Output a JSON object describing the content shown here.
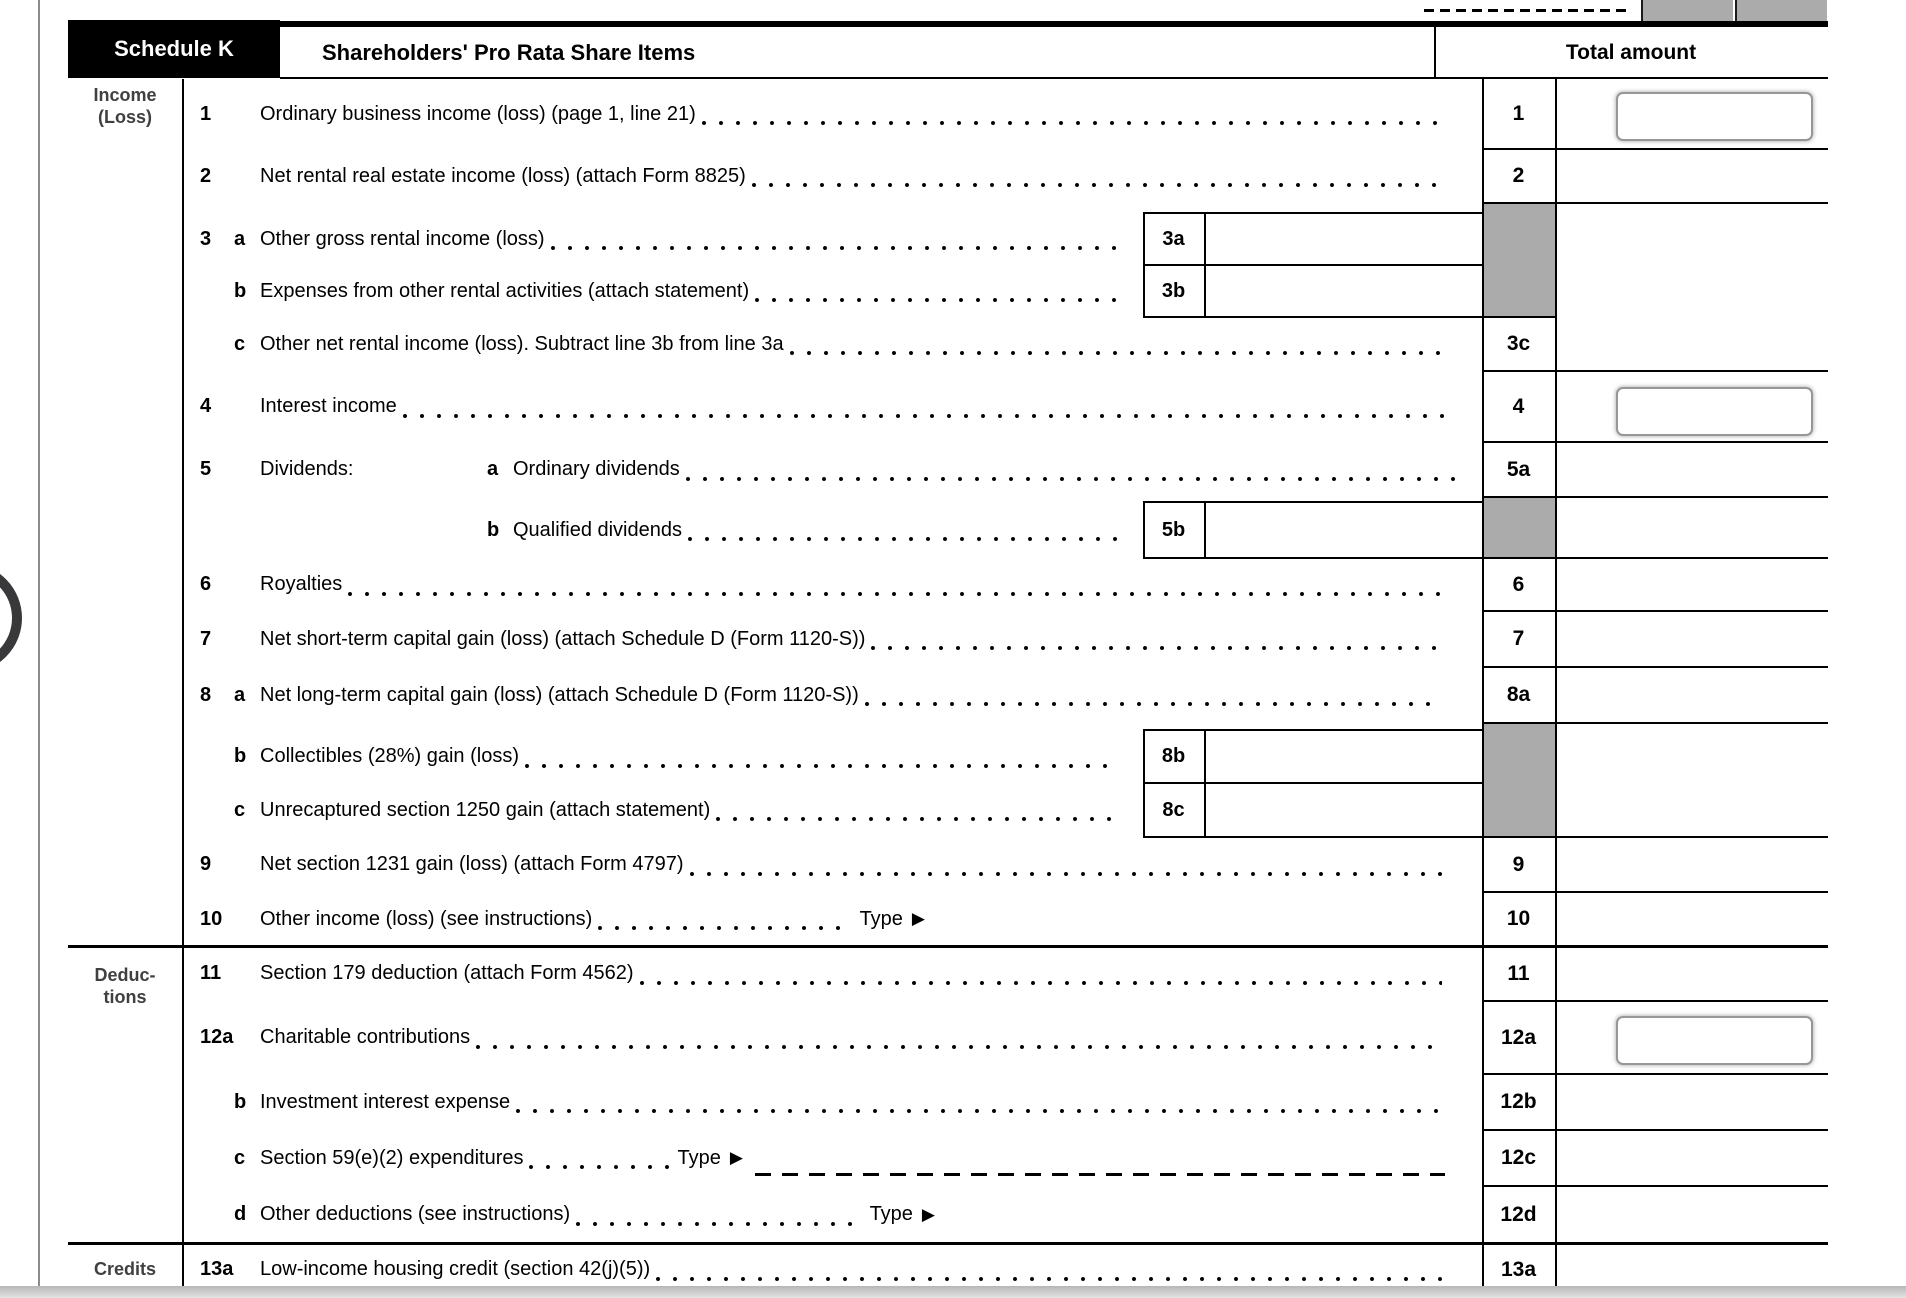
{
  "header": {
    "schedule_label": "Schedule K",
    "title": "Shareholders' Pro Rata Share Items",
    "total_col": "Total amount"
  },
  "sections": {
    "income": {
      "line1": "Income",
      "line2": "(Loss)"
    },
    "deductions": {
      "line1": "Deduc-",
      "line2": "tions"
    },
    "credits": {
      "line1": "Credits"
    }
  },
  "icons": {
    "type_arrow": "▶"
  },
  "colors": {
    "shaded_cell": "#ababab",
    "input_border": "#979797",
    "section_label": "#404040"
  },
  "inputs": {
    "line1_value": "",
    "line4_value": "",
    "line12a_value": ""
  },
  "rows": [
    {
      "id": "1",
      "num": "1",
      "letter": "",
      "prefix": "",
      "letter2": "",
      "text": "Ordinary business income (loss) (page 1, line 21)",
      "suffix": "",
      "right_label": "1",
      "inner_label": "",
      "has_input": true,
      "blank": false
    },
    {
      "id": "2",
      "num": "2",
      "letter": "",
      "prefix": "",
      "letter2": "",
      "text": "Net rental real estate income (loss) (attach Form 8825)",
      "suffix": "",
      "right_label": "2",
      "inner_label": "",
      "has_input": false,
      "blank": false
    },
    {
      "id": "3a",
      "num": "3",
      "letter": "a",
      "prefix": "",
      "letter2": "",
      "text": "Other gross rental income (loss)",
      "suffix": "",
      "right_label": "",
      "inner_label": "3a",
      "has_input": false,
      "blank": false
    },
    {
      "id": "3b",
      "num": "",
      "letter": "b",
      "prefix": "",
      "letter2": "",
      "text": "Expenses from other rental activities (attach statement)",
      "suffix": "",
      "right_label": "",
      "inner_label": "3b",
      "has_input": false,
      "blank": false
    },
    {
      "id": "3c",
      "num": "",
      "letter": "c",
      "prefix": "",
      "letter2": "",
      "text": "Other net rental income (loss). Subtract line 3b from line 3a",
      "suffix": "",
      "right_label": "3c",
      "inner_label": "",
      "has_input": false,
      "blank": false
    },
    {
      "id": "4",
      "num": "4",
      "letter": "",
      "prefix": "",
      "letter2": "",
      "text": "Interest income",
      "suffix": "",
      "right_label": "4",
      "inner_label": "",
      "has_input": true,
      "blank": false
    },
    {
      "id": "5a",
      "num": "5",
      "letter": "",
      "prefix": "Dividends:",
      "letter2": "a",
      "text": "Ordinary dividends",
      "suffix": "",
      "right_label": "5a",
      "inner_label": "",
      "has_input": false,
      "blank": false
    },
    {
      "id": "5b",
      "num": "",
      "letter": "",
      "prefix": "",
      "letter2": "b",
      "text": "Qualified dividends",
      "suffix": "",
      "right_label": "",
      "inner_label": "5b",
      "has_input": false,
      "blank": false
    },
    {
      "id": "6",
      "num": "6",
      "letter": "",
      "prefix": "",
      "letter2": "",
      "text": "Royalties",
      "suffix": "",
      "right_label": "6",
      "inner_label": "",
      "has_input": false,
      "blank": false
    },
    {
      "id": "7",
      "num": "7",
      "letter": "",
      "prefix": "",
      "letter2": "",
      "text": "Net short-term capital gain (loss) (attach Schedule D (Form 1120-S))",
      "suffix": "",
      "right_label": "7",
      "inner_label": "",
      "has_input": false,
      "blank": false
    },
    {
      "id": "8a",
      "num": "8",
      "letter": "a",
      "prefix": "",
      "letter2": "",
      "text": "Net long-term capital gain (loss) (attach Schedule D (Form 1120-S))",
      "suffix": "",
      "right_label": "8a",
      "inner_label": "",
      "has_input": false,
      "blank": false
    },
    {
      "id": "8b",
      "num": "",
      "letter": "b",
      "prefix": "",
      "letter2": "",
      "text": "Collectibles (28%) gain (loss)",
      "suffix": "",
      "right_label": "",
      "inner_label": "8b",
      "has_input": false,
      "blank": false
    },
    {
      "id": "8c",
      "num": "",
      "letter": "c",
      "prefix": "",
      "letter2": "",
      "text": "Unrecaptured section 1250 gain (attach statement)",
      "suffix": "",
      "right_label": "",
      "inner_label": "8c",
      "has_input": false,
      "blank": false
    },
    {
      "id": "9",
      "num": "9",
      "letter": "",
      "prefix": "",
      "letter2": "",
      "text": "Net section 1231 gain (loss) (attach Form 4797)",
      "suffix": "",
      "right_label": "9",
      "inner_label": "",
      "has_input": false,
      "blank": false
    },
    {
      "id": "10",
      "num": "10",
      "letter": "",
      "prefix": "",
      "letter2": "",
      "text": "Other income (loss) (see instructions)",
      "suffix": "Type",
      "right_label": "10",
      "inner_label": "",
      "has_input": false,
      "blank": false
    },
    {
      "id": "11",
      "num": "11",
      "letter": "",
      "prefix": "",
      "letter2": "",
      "text": "Section 179 deduction (attach Form 4562)",
      "suffix": "",
      "right_label": "11",
      "inner_label": "",
      "has_input": false,
      "blank": false
    },
    {
      "id": "12a",
      "num": "12a",
      "letter": "",
      "prefix": "",
      "letter2": "",
      "text": "Charitable contributions",
      "suffix": "",
      "right_label": "12a",
      "inner_label": "",
      "has_input": true,
      "blank": false
    },
    {
      "id": "12b",
      "num": "",
      "letter": "b",
      "prefix": "",
      "letter2": "",
      "text": "Investment interest expense",
      "suffix": "",
      "right_label": "12b",
      "inner_label": "",
      "has_input": false,
      "blank": false
    },
    {
      "id": "12c",
      "num": "",
      "letter": "c",
      "prefix": "",
      "letter2": "",
      "text": "Section 59(e)(2) expenditures",
      "suffix": "Type",
      "right_label": "12c",
      "inner_label": "",
      "has_input": false,
      "blank": true
    },
    {
      "id": "12d",
      "num": "",
      "letter": "d",
      "prefix": "",
      "letter2": "",
      "text": "Other deductions (see instructions)",
      "suffix": "Type",
      "right_label": "12d",
      "inner_label": "",
      "has_input": false,
      "blank": false
    },
    {
      "id": "13a",
      "num": "13a",
      "letter": "",
      "prefix": "",
      "letter2": "",
      "text": "Low-income housing credit (section 42(j)(5))",
      "suffix": "",
      "right_label": "13a",
      "inner_label": "",
      "has_input": false,
      "blank": false
    }
  ]
}
